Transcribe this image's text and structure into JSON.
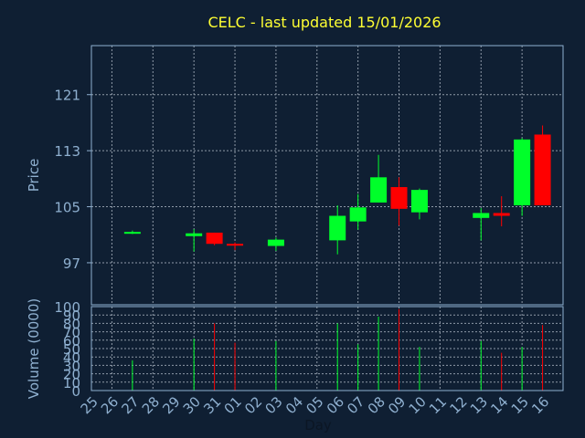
{
  "chart_data": {
    "type": "candlestick",
    "title": "CELC - last updated 15/01/2026",
    "xlabel": "Day",
    "ylabel": "Price",
    "volume_label": "Volume (0000)",
    "grid": true,
    "x_ticks": [
      "25",
      "26",
      "27",
      "28",
      "29",
      "30",
      "31",
      "01",
      "02",
      "03",
      "04",
      "05",
      "06",
      "07",
      "08",
      "09",
      "10",
      "11",
      "12",
      "13",
      "14",
      "15",
      "16"
    ],
    "price_ylim": [
      91,
      128
    ],
    "price_ticks": [
      97,
      105,
      113,
      121
    ],
    "volume_ylim": [
      0,
      100
    ],
    "volume_ticks": [
      0,
      10,
      20,
      30,
      40,
      50,
      60,
      70,
      80,
      90,
      100
    ],
    "candles": [
      {
        "day": "26",
        "open": 101.4,
        "high": 101.6,
        "low": 101.1,
        "close": 101.4,
        "volume": 36
      },
      {
        "day": "29",
        "open": 100.8,
        "high": 101.8,
        "low": 98.6,
        "close": 101.2,
        "volume": 62
      },
      {
        "day": "30",
        "open": 101.3,
        "high": 101.3,
        "low": 99.5,
        "close": 99.7,
        "volume": 80
      },
      {
        "day": "31",
        "open": 99.7,
        "high": 99.9,
        "low": 98.8,
        "close": 99.5,
        "volume": 57
      },
      {
        "day": "02",
        "open": 99.4,
        "high": 100.6,
        "low": 98.7,
        "close": 100.3,
        "volume": 59
      },
      {
        "day": "05",
        "open": 100.2,
        "high": 105.2,
        "low": 98.2,
        "close": 103.7,
        "volume": 80
      },
      {
        "day": "06",
        "open": 102.9,
        "high": 106.8,
        "low": 101.7,
        "close": 104.9,
        "volume": 55
      },
      {
        "day": "07",
        "open": 105.6,
        "high": 112.4,
        "low": 105.6,
        "close": 109.2,
        "volume": 88
      },
      {
        "day": "08",
        "open": 107.8,
        "high": 109.2,
        "low": 102.3,
        "close": 104.7,
        "volume": 97
      },
      {
        "day": "09",
        "open": 104.2,
        "high": 107.6,
        "low": 103.2,
        "close": 107.4,
        "volume": 52
      },
      {
        "day": "12",
        "open": 103.4,
        "high": 104.8,
        "low": 100.2,
        "close": 104.1,
        "volume": 59
      },
      {
        "day": "13",
        "open": 104.1,
        "high": 106.5,
        "low": 102.2,
        "close": 103.7,
        "volume": 45
      },
      {
        "day": "14",
        "open": 105.2,
        "high": 114.8,
        "low": 103.7,
        "close": 114.6,
        "volume": 52
      },
      {
        "day": "15",
        "open": 115.3,
        "high": 116.6,
        "low": 105.2,
        "close": 105.2,
        "volume": 78
      }
    ],
    "colors": {
      "background": "#0f1f33",
      "axis": "#8fb0d0",
      "grid": "#8f9aa8",
      "title": "#ffff33",
      "up": "#00ff2a",
      "down": "#ff0000"
    }
  }
}
